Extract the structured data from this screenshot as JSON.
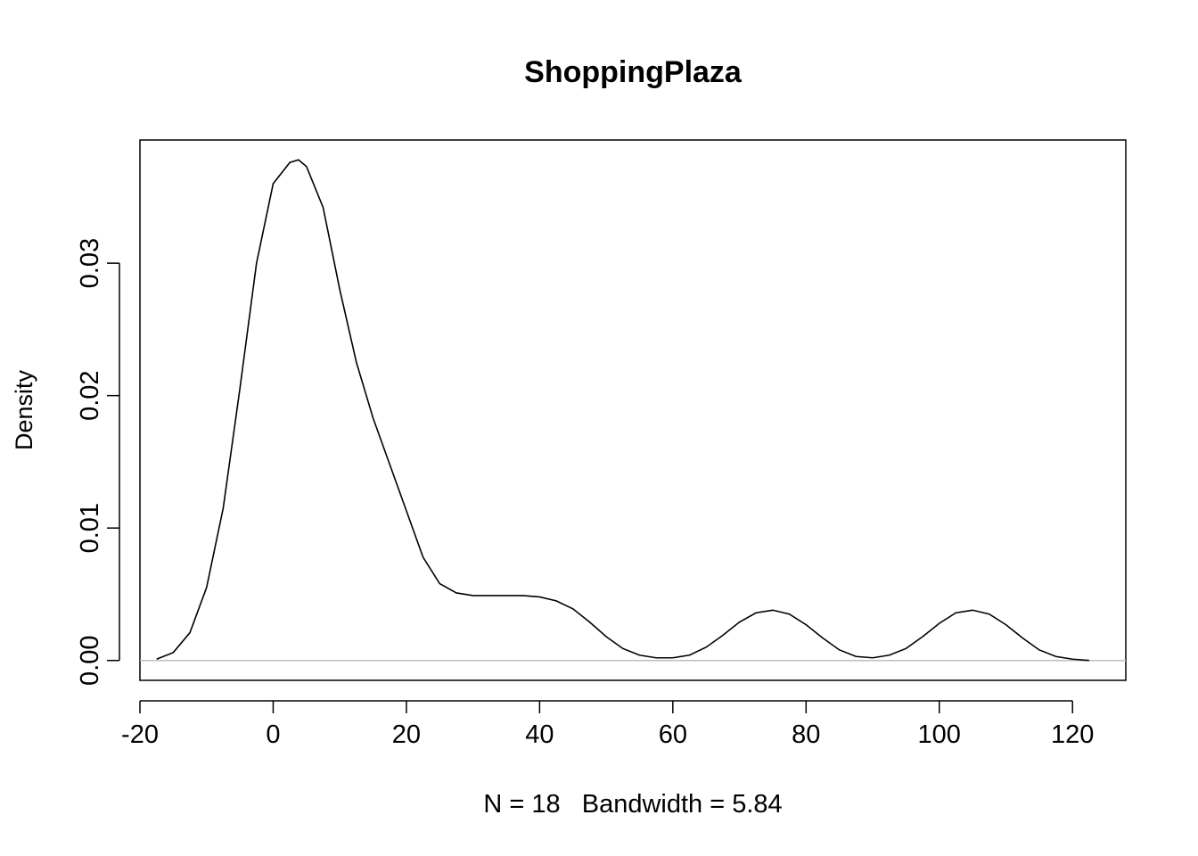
{
  "chart_data": {
    "type": "line",
    "title": "ShoppingPlaza",
    "xlabel": "N = 18   Bandwidth = 5.84",
    "ylabel": "Density",
    "xlim": [
      -20,
      128
    ],
    "ylim": [
      -0.0015,
      0.0393
    ],
    "x_ticks": [
      -20,
      0,
      20,
      40,
      60,
      80,
      100,
      120
    ],
    "x_tick_labels": [
      "-20",
      "0",
      "20",
      "40",
      "60",
      "80",
      "100",
      "120"
    ],
    "y_ticks": [
      0.0,
      0.01,
      0.02,
      0.03
    ],
    "y_tick_labels": [
      "0.00",
      "0.01",
      "0.02",
      "0.03"
    ],
    "baseline": 0,
    "grid": false,
    "series": [
      {
        "x": [
          -17.5,
          -15,
          -12.5,
          -10,
          -7.5,
          -5,
          -2.5,
          0,
          2.5,
          3.8,
          5,
          7.5,
          10,
          12.5,
          15,
          17.5,
          20,
          22.5,
          25,
          27.5,
          30,
          32.5,
          35,
          37.5,
          40,
          42.5,
          45,
          47.5,
          50,
          52.5,
          55,
          57.5,
          60,
          62.5,
          65,
          67.5,
          70,
          72.5,
          75,
          77.5,
          80,
          82.5,
          85,
          87.5,
          90,
          92.5,
          95,
          97.5,
          100,
          102.5,
          105,
          107.5,
          110,
          112.5,
          115,
          117.5,
          120,
          122.5
        ],
        "y": [
          0.0001,
          0.0006,
          0.0021,
          0.0055,
          0.0115,
          0.0205,
          0.03,
          0.036,
          0.0376,
          0.0378,
          0.0373,
          0.0342,
          0.028,
          0.0225,
          0.0183,
          0.0148,
          0.0113,
          0.0078,
          0.0058,
          0.0051,
          0.0049,
          0.0049,
          0.0049,
          0.0049,
          0.0048,
          0.0045,
          0.0039,
          0.0029,
          0.0018,
          0.0009,
          0.0004,
          0.0002,
          0.0002,
          0.0004,
          0.001,
          0.0019,
          0.0029,
          0.0036,
          0.0038,
          0.0035,
          0.0027,
          0.0017,
          0.0008,
          0.0003,
          0.0002,
          0.0004,
          0.0009,
          0.0018,
          0.0028,
          0.0036,
          0.0038,
          0.0035,
          0.0027,
          0.0017,
          0.0008,
          0.0003,
          0.0001,
          0.0
        ]
      }
    ]
  }
}
